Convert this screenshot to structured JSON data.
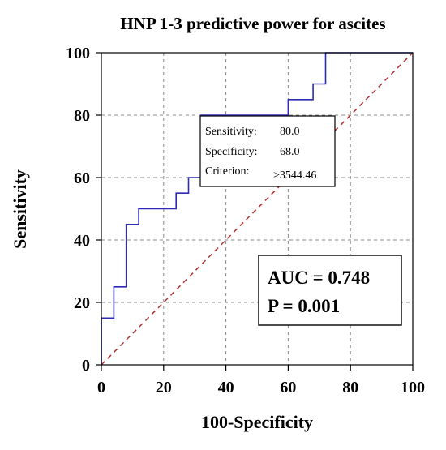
{
  "chart_data": {
    "type": "line",
    "title": "HNP 1-3 predictive power for ascites",
    "xlabel": "100-Specificity",
    "ylabel": "Sensitivity",
    "xlim": [
      0,
      100
    ],
    "ylim": [
      0,
      100
    ],
    "x_ticks": [
      "0",
      "20",
      "40",
      "60",
      "80",
      "100"
    ],
    "y_ticks": [
      "0",
      "20",
      "40",
      "60",
      "80",
      "100"
    ],
    "grid": true,
    "series": [
      {
        "color": "#2b2bb5",
        "x": [
          0,
          0,
          4,
          4,
          8,
          8,
          12,
          12,
          24,
          24,
          28,
          28,
          32,
          32,
          36,
          36,
          60,
          60,
          68,
          68,
          72,
          72,
          100
        ],
        "y": [
          0,
          15,
          15,
          25,
          25,
          45,
          45,
          50,
          50,
          55,
          55,
          60,
          60,
          80,
          80,
          80,
          80,
          85,
          85,
          90,
          90,
          100,
          100
        ]
      }
    ],
    "reference_line": {
      "style": "dashed",
      "color": "#b03030",
      "x": [
        0,
        100
      ],
      "y": [
        0,
        100
      ]
    },
    "annotations": {
      "tooltip": {
        "rows": [
          {
            "label": "Sensitivity:",
            "value": "80.0"
          },
          {
            "label": "Specificity:",
            "value": "68.0"
          },
          {
            "label": "Criterion:",
            "value": ">3544.46"
          }
        ]
      },
      "stats": {
        "auc": "AUC = 0.748",
        "p": "P = 0.001"
      }
    }
  }
}
